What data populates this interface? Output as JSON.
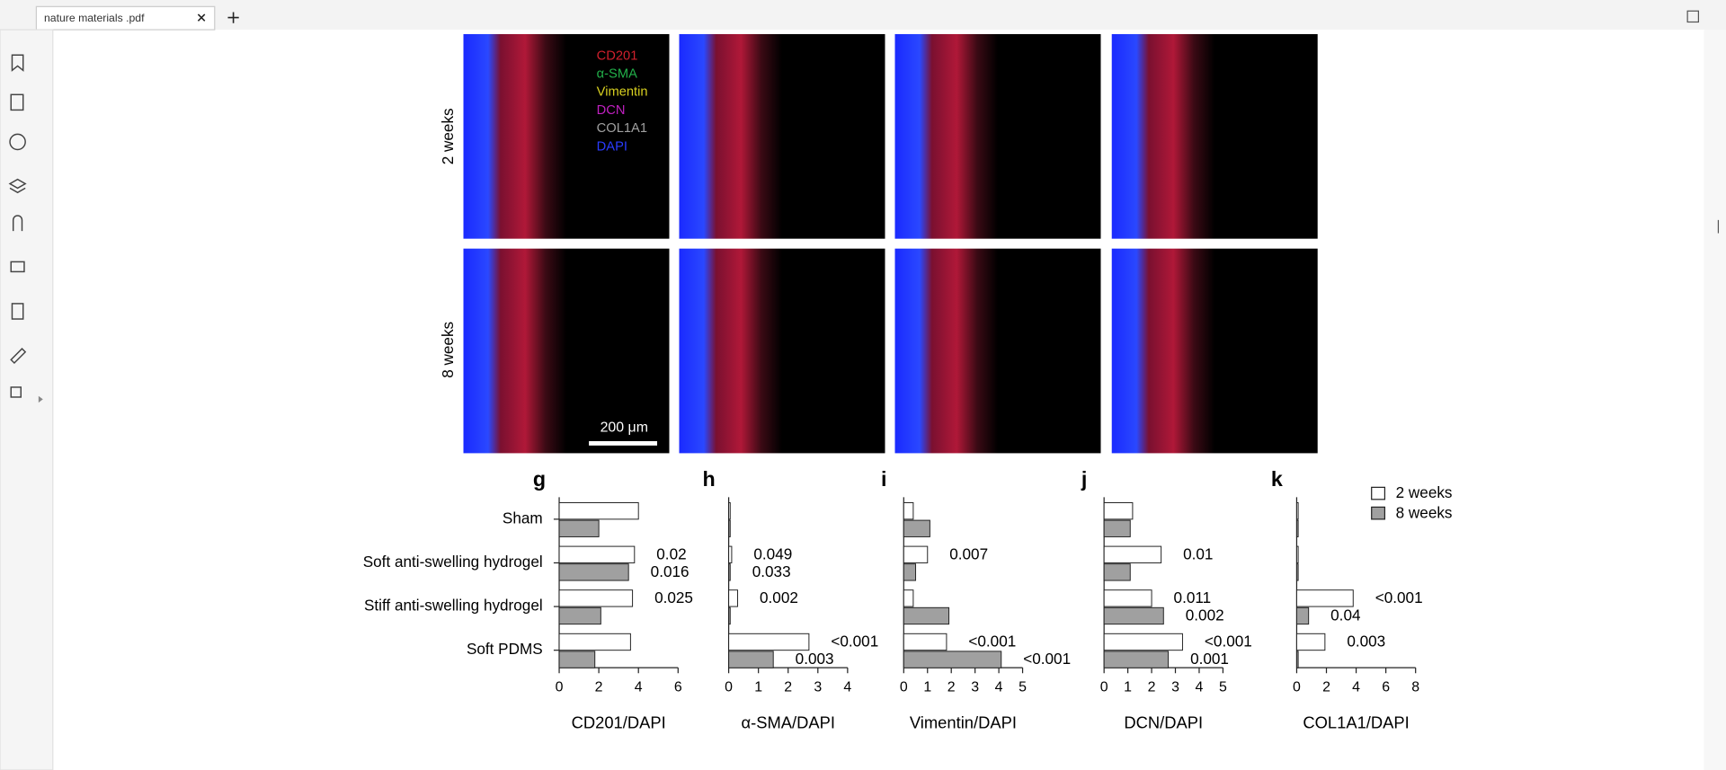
{
  "tab": {
    "title": "nature materials .pdf"
  },
  "figure": {
    "row_labels": [
      "2 weeks",
      "8 weeks"
    ],
    "stains": [
      {
        "text": "CD201",
        "color": "#d0202c"
      },
      {
        "text": "α-SMA",
        "color": "#22b04a"
      },
      {
        "text": "Vimentin",
        "color": "#d8d020"
      },
      {
        "text": "DCN",
        "color": "#c020c0"
      },
      {
        "text": "COL1A1",
        "color": "#a0a0a0"
      },
      {
        "text": "DAPI",
        "color": "#2a3cff"
      }
    ],
    "scale_bar": "200 μm",
    "categories": [
      "Sham",
      "Soft anti-swelling hydrogel",
      "Stiff anti-swelling hydrogel",
      "Soft PDMS"
    ],
    "series": [
      {
        "name": "2 weeks",
        "color": "#ffffff"
      },
      {
        "name": "8 weeks",
        "color": "#a0a0a0"
      }
    ],
    "panels": [
      {
        "label": "g",
        "x_label": "CD201/DAPI",
        "xlim": [
          0,
          6
        ],
        "xticks": [
          0,
          2,
          4,
          6
        ],
        "series": [
          {
            "values": [
              4.0,
              3.8,
              3.7,
              3.6
            ],
            "p_values": [
              null,
              "0.02",
              "0.025",
              null
            ]
          },
          {
            "values": [
              2.0,
              3.5,
              2.1,
              1.8
            ],
            "p_values": [
              null,
              "0.016",
              null,
              null
            ]
          }
        ]
      },
      {
        "label": "h",
        "x_label": "α-SMA/DAPI",
        "xlim": [
          0,
          4
        ],
        "xticks": [
          0,
          1,
          2,
          3,
          4
        ],
        "series": [
          {
            "values": [
              0.05,
              0.1,
              0.3,
              2.7
            ],
            "p_values": [
              null,
              "0.049",
              "0.002",
              "<0.001"
            ]
          },
          {
            "values": [
              0.05,
              0.05,
              0.05,
              1.5
            ],
            "p_values": [
              null,
              "0.033",
              null,
              "0.003"
            ]
          }
        ]
      },
      {
        "label": "i",
        "x_label": "Vimentin/DAPI",
        "xlim": [
          0,
          5
        ],
        "xticks": [
          0,
          1,
          2,
          3,
          4,
          5
        ],
        "series": [
          {
            "values": [
              0.4,
              1.0,
              0.4,
              1.8
            ],
            "p_values": [
              null,
              "0.007",
              null,
              "<0.001"
            ]
          },
          {
            "values": [
              1.1,
              0.5,
              1.9,
              4.1
            ],
            "p_values": [
              null,
              null,
              null,
              "<0.001"
            ]
          }
        ]
      },
      {
        "label": "j",
        "x_label": "DCN/DAPI",
        "xlim": [
          0,
          5
        ],
        "xticks": [
          0,
          1,
          2,
          3,
          4,
          5
        ],
        "series": [
          {
            "values": [
              1.2,
              2.4,
              2.0,
              3.3
            ],
            "p_values": [
              null,
              "0.01",
              "0.011",
              "<0.001"
            ]
          },
          {
            "values": [
              1.1,
              1.1,
              2.5,
              2.7
            ],
            "p_values": [
              null,
              null,
              "0.002",
              "0.001"
            ]
          }
        ]
      },
      {
        "label": "k",
        "x_label": "COL1A1/DAPI",
        "xlim": [
          0,
          8
        ],
        "xticks": [
          0,
          2,
          4,
          6,
          8
        ],
        "series": [
          {
            "values": [
              0.1,
              0.1,
              3.8,
              1.9
            ],
            "p_values": [
              null,
              null,
              "<0.001",
              "0.003"
            ]
          },
          {
            "values": [
              0.1,
              0.1,
              0.8,
              0.1
            ],
            "p_values": [
              null,
              null,
              "0.04",
              null
            ]
          }
        ]
      }
    ]
  }
}
